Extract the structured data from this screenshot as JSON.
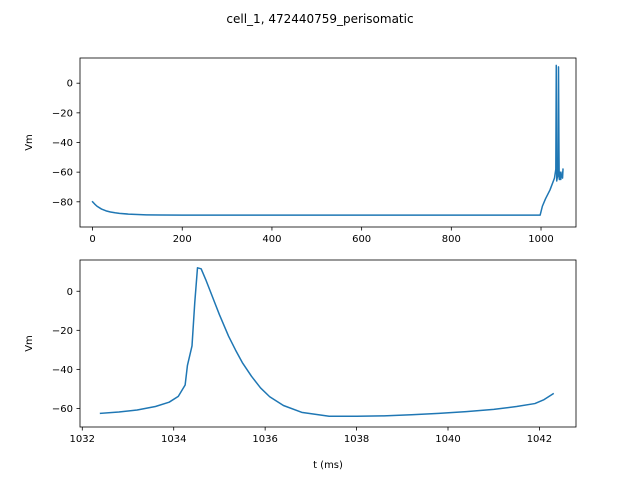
{
  "figure": {
    "title": "cell_1, 472440759_perisomatic"
  },
  "chart_data": [
    {
      "type": "line",
      "title": "",
      "xlabel": "",
      "ylabel": "Vm",
      "xlim": [
        -28,
        1078
      ],
      "ylim": [
        -97,
        17
      ],
      "xticks": [
        0,
        200,
        400,
        600,
        800,
        1000
      ],
      "yticks": [
        0,
        -20,
        -40,
        -60,
        -80
      ],
      "grid": false,
      "color": "#1f77b4",
      "series": [
        {
          "x": [
            0,
            5,
            10,
            20,
            30,
            40,
            50,
            60,
            80,
            100,
            120,
            150,
            200,
            300,
            400,
            500,
            600,
            700,
            800,
            900,
            998,
            1003,
            1010,
            1020,
            1030,
            1033,
            1034,
            1034.5,
            1035,
            1036,
            1037,
            1038,
            1039,
            1040,
            1040.5,
            1041,
            1042,
            1043,
            1044,
            1045,
            1046,
            1047,
            1048,
            1049
          ],
          "y": [
            -80,
            -81.6,
            -83,
            -84.9,
            -86.1,
            -86.9,
            -87.4,
            -87.8,
            -88.3,
            -88.6,
            -88.8,
            -88.9,
            -89,
            -89,
            -89,
            -89,
            -89,
            -89,
            -89,
            -89,
            -89,
            -83,
            -78,
            -72,
            -64,
            -58,
            12,
            -28,
            -66,
            -64,
            -63,
            -62,
            11,
            -45,
            -64,
            -65,
            -63,
            -60,
            -65,
            -62,
            -63,
            -60,
            -64,
            -58
          ]
        }
      ]
    },
    {
      "type": "line",
      "title": "",
      "xlabel": "t (ms)",
      "ylabel": "Vm",
      "xlim": [
        1031.95,
        1042.8
      ],
      "ylim": [
        -69.5,
        16
      ],
      "xticks": [
        1032,
        1034,
        1036,
        1038,
        1040,
        1042
      ],
      "yticks": [
        0,
        -20,
        -40,
        -60
      ],
      "grid": false,
      "color": "#1f77b4",
      "series": [
        {
          "x": [
            1032.4,
            1032.8,
            1033.2,
            1033.6,
            1033.9,
            1034.1,
            1034.25,
            1034.3,
            1034.4,
            1034.46,
            1034.52,
            1034.6,
            1034.7,
            1034.8,
            1034.9,
            1035.0,
            1035.1,
            1035.2,
            1035.35,
            1035.5,
            1035.7,
            1035.9,
            1036.1,
            1036.4,
            1036.8,
            1037.4,
            1038.0,
            1038.6,
            1039.2,
            1039.8,
            1040.4,
            1041.0,
            1041.5,
            1041.9,
            1042.1,
            1042.3
          ],
          "y": [
            -62.5,
            -61.8,
            -60.8,
            -59.0,
            -56.8,
            -53.8,
            -48,
            -38,
            -28,
            -6,
            12,
            11.5,
            6,
            0,
            -6,
            -12,
            -17.5,
            -23,
            -30,
            -36.5,
            -43.5,
            -49.5,
            -54,
            -58.5,
            -62,
            -64,
            -64,
            -63.8,
            -63.2,
            -62.5,
            -61.6,
            -60.5,
            -59,
            -57.5,
            -55.5,
            -52.5
          ]
        }
      ]
    }
  ]
}
